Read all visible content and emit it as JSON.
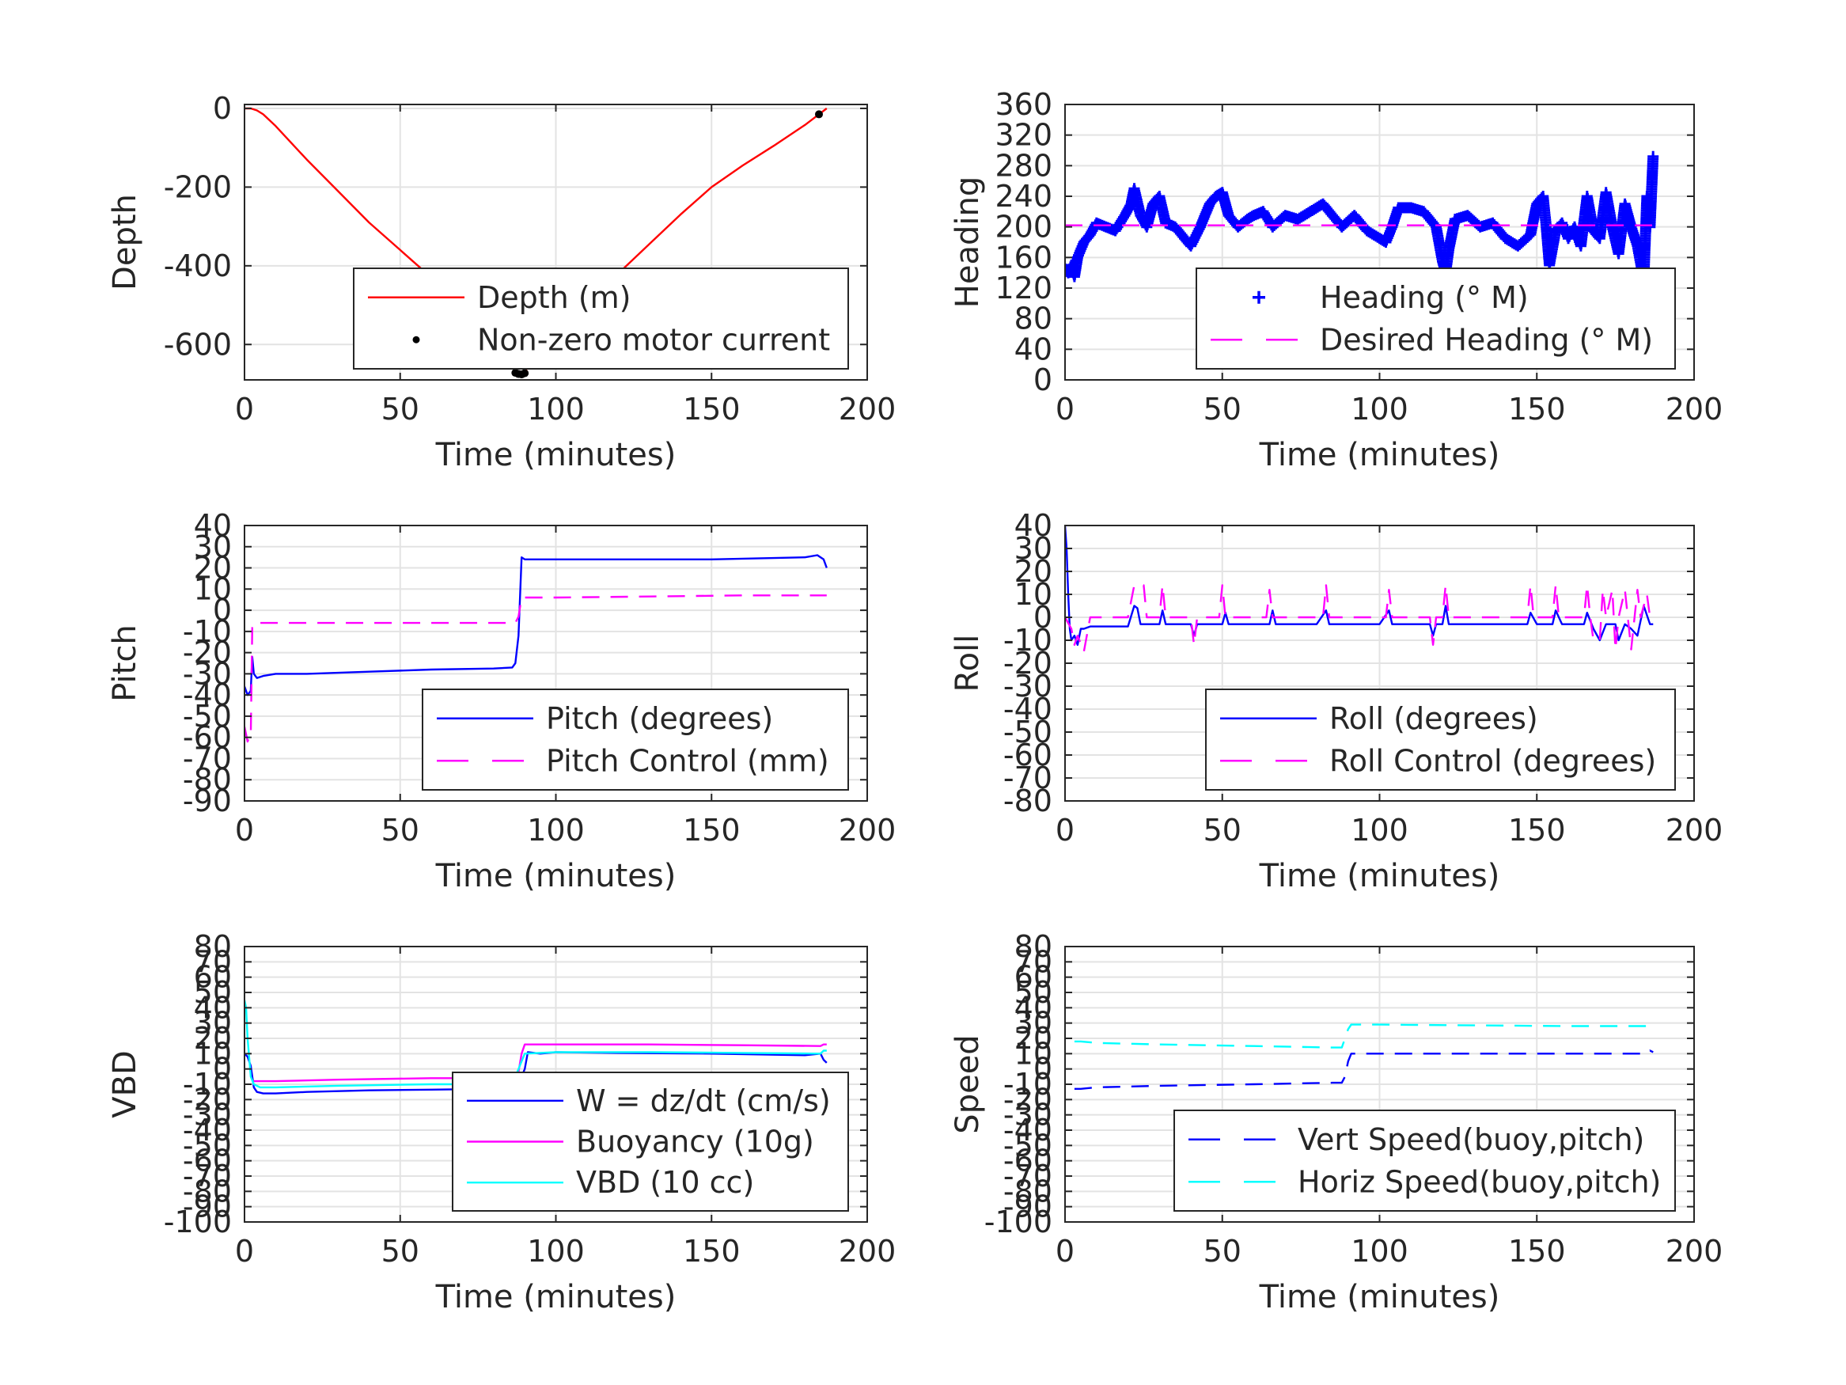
{
  "chart_data": [
    {
      "type": "line",
      "id": "depth",
      "xlabel": "Time (minutes)",
      "ylabel": "Depth",
      "xlim": [
        0,
        200
      ],
      "ylim": [
        -690,
        10
      ],
      "xticks": [
        0,
        50,
        100,
        150,
        200
      ],
      "yticks": [
        0,
        -200,
        -400,
        -600
      ],
      "grid": true,
      "legend": "lower-right",
      "series": [
        {
          "name": "Depth (m)",
          "color": "#ff0000",
          "style": "solid",
          "x": [
            0,
            2,
            4,
            6,
            10,
            20,
            30,
            40,
            50,
            60,
            70,
            80,
            86,
            88,
            90,
            95,
            100,
            110,
            120,
            130,
            140,
            150,
            160,
            170,
            180,
            185,
            187
          ],
          "y": [
            0,
            0,
            -5,
            -15,
            -45,
            -130,
            -210,
            -290,
            -360,
            -430,
            -510,
            -590,
            -640,
            -675,
            -668,
            -625,
            -585,
            -505,
            -420,
            -345,
            -270,
            -200,
            -145,
            -95,
            -42,
            -12,
            0
          ]
        },
        {
          "name": "Non-zero motor current",
          "color": "#000000",
          "style": "dots",
          "x": [
            87,
            88,
            89,
            90,
            184.5
          ],
          "y": [
            -672,
            -675,
            -676,
            -673,
            -15
          ]
        }
      ]
    },
    {
      "type": "line",
      "id": "heading",
      "xlabel": "Time (minutes)",
      "ylabel": "Heading",
      "xlim": [
        0,
        200
      ],
      "ylim": [
        0,
        360
      ],
      "xticks": [
        0,
        50,
        100,
        150,
        200
      ],
      "yticks": [
        0,
        40,
        80,
        120,
        160,
        200,
        240,
        280,
        320,
        360
      ],
      "grid": true,
      "legend": "lower-right",
      "series": [
        {
          "name": "Heading (° M)",
          "color": "#0000ff",
          "style": "plus",
          "x": [
            0,
            1,
            2,
            3,
            4,
            6,
            8,
            10,
            13,
            16,
            19,
            21,
            22,
            24,
            26,
            28,
            30,
            32,
            35,
            38,
            40,
            43,
            46,
            48,
            50,
            52,
            55,
            58,
            60,
            63,
            66,
            70,
            74,
            78,
            82,
            85,
            88,
            92,
            96,
            100,
            102,
            104,
            106,
            110,
            114,
            118,
            120,
            121,
            122,
            124,
            128,
            132,
            136,
            140,
            144,
            148,
            150,
            152,
            153,
            154,
            156,
            158,
            160,
            162,
            164,
            166,
            168,
            170,
            172,
            174,
            176,
            178,
            180,
            182,
            184,
            185,
            186,
            187
          ],
          "y": [
            145,
            140,
            150,
            135,
            160,
            180,
            190,
            205,
            200,
            195,
            215,
            230,
            250,
            215,
            200,
            230,
            240,
            205,
            200,
            185,
            175,
            200,
            230,
            240,
            245,
            215,
            200,
            210,
            215,
            220,
            200,
            215,
            210,
            220,
            230,
            215,
            200,
            215,
            195,
            185,
            180,
            200,
            225,
            225,
            220,
            200,
            155,
            140,
            170,
            210,
            215,
            200,
            205,
            185,
            175,
            190,
            230,
            240,
            200,
            150,
            195,
            205,
            185,
            200,
            175,
            240,
            195,
            185,
            245,
            200,
            165,
            230,
            200,
            175,
            130,
            240,
            200,
            295
          ]
        },
        {
          "name": "Desired Heading (° M)",
          "color": "#ff00ff",
          "style": "dashed",
          "x": [
            0,
            187
          ],
          "y": [
            202,
            202
          ]
        }
      ]
    },
    {
      "type": "line",
      "id": "pitch",
      "xlabel": "Time (minutes)",
      "ylabel": "Pitch",
      "xlim": [
        0,
        200
      ],
      "ylim": [
        -90,
        40
      ],
      "xticks": [
        0,
        50,
        100,
        150,
        200
      ],
      "yticks": [
        40,
        30,
        20,
        10,
        0,
        -10,
        -20,
        -30,
        -40,
        -50,
        -60,
        -70,
        -80,
        -90
      ],
      "grid": true,
      "legend": "lower-right",
      "series": [
        {
          "name": "Pitch (degrees)",
          "color": "#0000ff",
          "style": "solid",
          "x": [
            0,
            1,
            2,
            2.5,
            3,
            4,
            6,
            10,
            20,
            40,
            60,
            80,
            86,
            87,
            88,
            89,
            90,
            100,
            120,
            150,
            180,
            184,
            186,
            187
          ],
          "y": [
            -36,
            -40,
            -38,
            -22,
            -30,
            -32,
            -31,
            -30,
            -30,
            -29,
            -28,
            -27.5,
            -27,
            -25,
            -12,
            25,
            24,
            24,
            24,
            24,
            25,
            26,
            24,
            20
          ]
        },
        {
          "name": "Pitch Control (mm)",
          "color": "#ff00ff",
          "style": "dashed",
          "x": [
            0,
            1,
            1.5,
            2,
            2.5,
            3,
            10,
            40,
            80,
            87,
            88,
            89,
            90,
            100,
            130,
            160,
            187
          ],
          "y": [
            -55,
            -62,
            -60,
            -60,
            -8,
            -6,
            -6,
            -6,
            -6,
            -6,
            -3,
            6,
            6,
            6,
            6.5,
            7,
            7
          ]
        }
      ]
    },
    {
      "type": "line",
      "id": "roll",
      "xlabel": "Time (minutes)",
      "ylabel": "Roll",
      "xlim": [
        0,
        200
      ],
      "ylim": [
        -80,
        40
      ],
      "xticks": [
        0,
        50,
        100,
        150,
        200
      ],
      "yticks": [
        40,
        30,
        20,
        10,
        0,
        -10,
        -20,
        -30,
        -40,
        -50,
        -60,
        -70,
        -80
      ],
      "grid": true,
      "legend": "lower-right",
      "series": [
        {
          "name": "Roll (degrees)",
          "color": "#0000ff",
          "style": "solid",
          "x": [
            0,
            0.5,
            1,
            1.5,
            2,
            3,
            4,
            5,
            6,
            8,
            20,
            22,
            23,
            24,
            26,
            30,
            31,
            32,
            34,
            40,
            41,
            42,
            44,
            50,
            51,
            52,
            54,
            65,
            66,
            67,
            70,
            80,
            83,
            84,
            86,
            90,
            100,
            103,
            104,
            106,
            110,
            116,
            117,
            118,
            120,
            121,
            122,
            124,
            140,
            147,
            148,
            150,
            155,
            156,
            158,
            160,
            165,
            166,
            168,
            170,
            172,
            175,
            176,
            178,
            180,
            182,
            184,
            186,
            187
          ],
          "y": [
            40,
            30,
            10,
            -5,
            -10,
            -8,
            -12,
            -5,
            -5,
            -4,
            -4,
            5,
            4,
            -3,
            -3,
            -3,
            3,
            -3,
            -3,
            -3,
            -8,
            -3,
            -3,
            -3,
            2,
            -3,
            -3,
            -3,
            3,
            -3,
            -3,
            -3,
            3,
            -3,
            -3,
            -3,
            -3,
            3,
            -3,
            -3,
            -3,
            -3,
            -8,
            -3,
            -3,
            5,
            -3,
            -3,
            -3,
            -3,
            2,
            -3,
            -3,
            3,
            -3,
            -3,
            -3,
            2,
            -5,
            -10,
            -3,
            -3,
            -10,
            -3,
            -5,
            -8,
            5,
            -3,
            -3
          ]
        },
        {
          "name": "Roll Control (degrees)",
          "color": "#ff00ff",
          "style": "dashed",
          "x": [
            0,
            2,
            3,
            4,
            6,
            8,
            20,
            22,
            23,
            25,
            26,
            30,
            31,
            32,
            40,
            41,
            42,
            49,
            50,
            51,
            52,
            64,
            65,
            66,
            67,
            82,
            83,
            84,
            86,
            102,
            103,
            104,
            105,
            116,
            117,
            118,
            120,
            121,
            122,
            147,
            148,
            149,
            155,
            156,
            157,
            165,
            166,
            167,
            168,
            170,
            171,
            172,
            174,
            175,
            176,
            178,
            180,
            182,
            183,
            185,
            186,
            187
          ],
          "y": [
            0,
            -5,
            -12,
            -8,
            -15,
            0,
            0,
            14,
            14,
            14,
            0,
            0,
            14,
            0,
            0,
            -12,
            0,
            0,
            14,
            0,
            0,
            0,
            12,
            0,
            0,
            0,
            14,
            0,
            0,
            0,
            12,
            0,
            0,
            0,
            -12,
            0,
            0,
            14,
            0,
            0,
            14,
            0,
            0,
            14,
            0,
            0,
            14,
            0,
            -10,
            -10,
            12,
            0,
            12,
            -14,
            0,
            12,
            -14,
            12,
            0,
            10,
            0,
            0
          ]
        }
      ]
    },
    {
      "type": "line",
      "id": "vbd",
      "xlabel": "Time (minutes)",
      "ylabel": "VBD",
      "xlim": [
        0,
        200
      ],
      "ylim": [
        -100,
        80
      ],
      "xticks": [
        0,
        50,
        100,
        150,
        200
      ],
      "yticks": [
        80,
        70,
        60,
        50,
        40,
        30,
        20,
        10,
        0,
        -10,
        -20,
        -30,
        -40,
        -50,
        -60,
        -70,
        -80,
        -90,
        -100
      ],
      "grid": true,
      "legend": "lower-right",
      "series": [
        {
          "name": "W = dz/dt (cm/s)",
          "color": "#0000ff",
          "style": "solid",
          "x": [
            0,
            1,
            1.5,
            2,
            3,
            4,
            6,
            10,
            20,
            40,
            60,
            80,
            86,
            88,
            90,
            91,
            95,
            100,
            120,
            150,
            180,
            185,
            186,
            187
          ],
          "y": [
            10,
            8,
            5,
            2,
            -12,
            -15,
            -16,
            -16,
            -15,
            -14,
            -13.5,
            -13,
            -13,
            -10,
            0,
            11,
            10,
            11,
            10.5,
            10,
            9,
            10,
            6,
            4
          ]
        },
        {
          "name": "Buoyancy (10g)",
          "color": "#ff00ff",
          "style": "solid",
          "x": [
            3,
            5,
            10,
            30,
            60,
            87,
            88,
            89,
            90,
            100,
            130,
            160,
            185,
            186,
            187
          ],
          "y": [
            -8,
            -8,
            -8,
            -7,
            -6,
            -6,
            -2,
            10,
            16,
            16,
            16,
            15.5,
            15,
            16,
            16
          ]
        },
        {
          "name": "VBD (10 cc)",
          "color": "#00ffff",
          "style": "solid",
          "x": [
            0,
            0.5,
            1,
            2,
            3,
            5,
            10,
            30,
            60,
            86,
            87,
            88,
            89,
            90,
            100,
            130,
            160,
            185,
            186,
            187
          ],
          "y": [
            45,
            40,
            20,
            -5,
            -10,
            -12,
            -12,
            -11,
            -10,
            -10,
            -5,
            0,
            5,
            10,
            11,
            11,
            10.5,
            10,
            12,
            12
          ]
        }
      ]
    },
    {
      "type": "line",
      "id": "speed",
      "xlabel": "Time (minutes)",
      "ylabel": "Speed",
      "xlim": [
        0,
        200
      ],
      "ylim": [
        -100,
        80
      ],
      "xticks": [
        0,
        50,
        100,
        150,
        200
      ],
      "yticks": [
        80,
        70,
        60,
        50,
        40,
        30,
        20,
        10,
        0,
        -10,
        -20,
        -30,
        -40,
        -50,
        -60,
        -70,
        -80,
        -90,
        -100
      ],
      "grid": true,
      "legend": "lower-right",
      "series": [
        {
          "name": "Vert Speed(buoy,pitch)",
          "color": "#0000ff",
          "style": "dashed",
          "x": [
            3,
            5,
            10,
            30,
            60,
            85,
            88,
            89,
            90,
            91,
            100,
            130,
            160,
            185,
            186,
            187
          ],
          "y": [
            -13,
            -13,
            -12,
            -11,
            -10,
            -9,
            -9,
            -5,
            5,
            10,
            10,
            10,
            10,
            10,
            12,
            11
          ]
        },
        {
          "name": "Horiz Speed(buoy,pitch)",
          "color": "#00ffff",
          "style": "dashed",
          "x": [
            3,
            5,
            10,
            30,
            60,
            85,
            88,
            89,
            90,
            91,
            100,
            130,
            160,
            185,
            186,
            187
          ],
          "y": [
            18,
            18,
            17,
            16,
            15,
            14,
            14,
            20,
            26,
            29,
            29,
            28.5,
            28,
            28,
            29,
            30
          ]
        }
      ]
    }
  ]
}
